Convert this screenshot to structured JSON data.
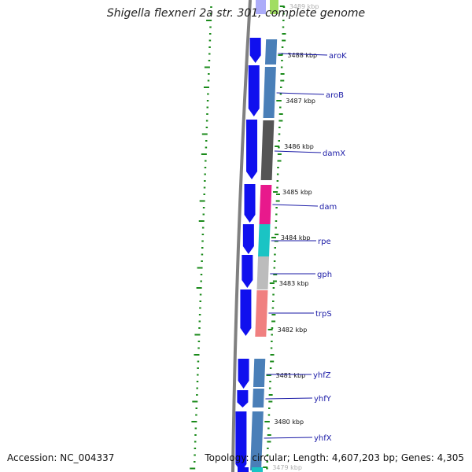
{
  "title": "Shigella flexneri 2a str. 301, complete genome",
  "accession": "Accession: NC_004337",
  "topology": "Topology: circular; Length: 4,607,203 bp; Genes: 4,305",
  "kbp_labels": [
    {
      "text": "3489 kbp",
      "faded": true
    },
    {
      "text": "3488 kbp"
    },
    {
      "text": "3487 kbp"
    },
    {
      "text": "3486 kbp"
    },
    {
      "text": "3485 kbp"
    },
    {
      "text": "3484 kbp"
    },
    {
      "text": "3483 kbp"
    },
    {
      "text": "3482 kbp"
    },
    {
      "text": "3481 kbp"
    },
    {
      "text": "3480 kbp"
    },
    {
      "text": "3479 kbp",
      "faded": true
    }
  ],
  "genes": [
    {
      "name": "aroK",
      "color": "#4a7fb8"
    },
    {
      "name": "aroB",
      "color": "#4a7fb8"
    },
    {
      "name": "damX",
      "color": "#555555"
    },
    {
      "name": "dam",
      "color": "#e8198c"
    },
    {
      "name": "rpe",
      "color": "#1ac4c4"
    },
    {
      "name": "gph",
      "color": "#bcbcbc"
    },
    {
      "name": "trpS",
      "color": "#f08080"
    },
    {
      "name": "yhfZ",
      "color": "#4a7fb8"
    },
    {
      "name": "yhfY",
      "color": "#4a7fb8"
    },
    {
      "name": "yhfX",
      "color": "#4a7fb8"
    }
  ],
  "colors": {
    "cds": "#1010ee",
    "backbone": "#808080",
    "gc_skew": "#1a8a1a",
    "label_line": "#1a1aa6",
    "top_gene": "#8ad43a",
    "bottom_gene": "#1ac4c4"
  }
}
